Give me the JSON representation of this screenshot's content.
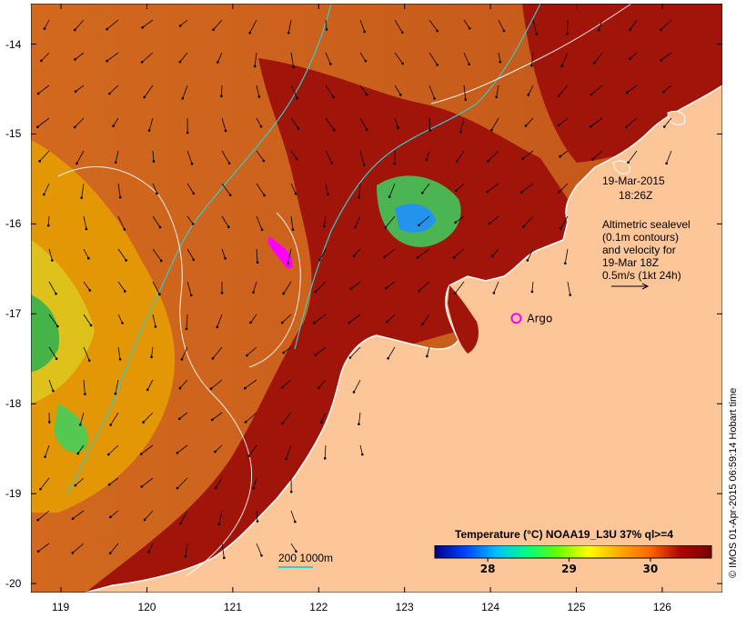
{
  "axes": {
    "x_ticks": [
      "119",
      "120",
      "121",
      "122",
      "123",
      "124",
      "125",
      "126"
    ],
    "y_ticks": [
      "-14",
      "-15",
      "-16",
      "-17",
      "-18",
      "-19",
      "-20"
    ],
    "lon_range": [
      118.65,
      126.7
    ],
    "lat_range": [
      -20.1,
      -13.55
    ]
  },
  "header": {
    "date": "19-Mar-2015",
    "time": "18:26Z"
  },
  "annotation": {
    "line1": "Altimetric sealevel",
    "line2": "(0.1m contours)",
    "line3": "and velocity for",
    "line4": "19-Mar 18Z",
    "line5": "0.5m/s (1kt 24h)"
  },
  "argo": {
    "label": "Argo",
    "lon": 124.3,
    "lat": -17.05,
    "color": "#ff00ff"
  },
  "depth_legend": {
    "label": "200  1000m",
    "color": "#33cccc"
  },
  "legend": {
    "title": "Temperature (°C) NOAA19_L3U 37% ql>=4",
    "tick_labels": [
      "28",
      "29",
      "30"
    ],
    "ticks": [
      28,
      29,
      30
    ],
    "range": [
      27.35,
      30.75
    ],
    "colors": [
      "#00008b",
      "#0044ff",
      "#00bfff",
      "#00ff80",
      "#66ff00",
      "#ffff00",
      "#ffaa00",
      "#ff6600",
      "#b00000",
      "#7a0000"
    ]
  },
  "credit": "© IMOS 01-Apr-2015 06:59:14 Hobart time",
  "colors": {
    "land": "#fdc698",
    "sea_warm": "#d2691e",
    "sea_hot": "#a0140a",
    "coast": "#ffffff"
  }
}
